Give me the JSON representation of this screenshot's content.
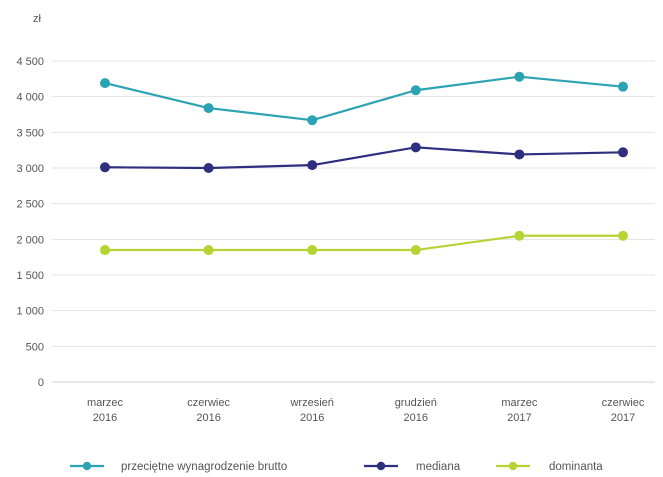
{
  "chart_data": {
    "type": "line",
    "ylabel": "zł",
    "ylim": [
      0,
      4500
    ],
    "yticks": [
      0,
      500,
      1000,
      1500,
      2000,
      2500,
      3000,
      3500,
      4000,
      4500
    ],
    "ytick_labels": [
      "0",
      "500",
      "1 000",
      "1 500",
      "2 000",
      "2 500",
      "3 000",
      "3 500",
      "4 000",
      "4 500"
    ],
    "categories": [
      [
        "marzec",
        "2016"
      ],
      [
        "czerwiec",
        "2016"
      ],
      [
        "wrzesień",
        "2016"
      ],
      [
        "grudzień",
        "2016"
      ],
      [
        "marzec",
        "2017"
      ],
      [
        "czerwiec",
        "2017"
      ]
    ],
    "grid": true,
    "legend_position": "bottom",
    "series": [
      {
        "name": "przeciętne wynagrodzenie brutto",
        "color": "#2ba3b4",
        "values": [
          4190,
          3840,
          3670,
          4090,
          4280,
          4140
        ]
      },
      {
        "name": "mediana",
        "color": "#2e2f7e",
        "values": [
          3010,
          3000,
          3040,
          3290,
          3190,
          3220
        ]
      },
      {
        "name": "dominanta",
        "color": "#b6d334",
        "values": [
          1850,
          1850,
          1850,
          1850,
          2050,
          2050
        ]
      }
    ]
  }
}
